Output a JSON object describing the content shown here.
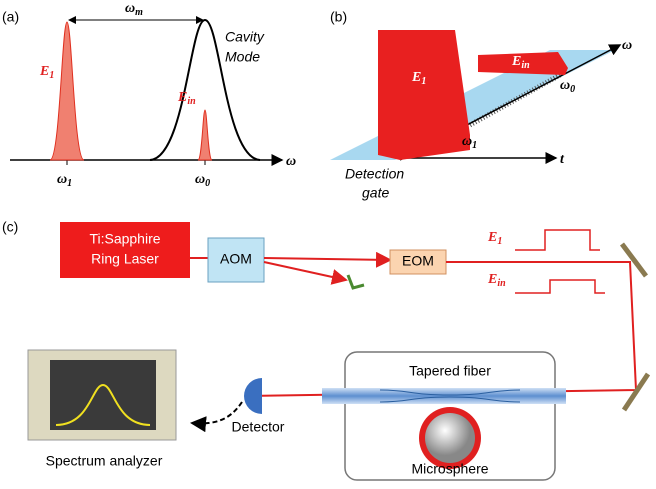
{
  "panel_a": {
    "label": "(a)",
    "omega_m": {
      "base": "ω",
      "sub": "m"
    },
    "cavity_mode": [
      "Cavity",
      "Mode"
    ],
    "e1": {
      "base": "E",
      "sub": "1"
    },
    "ein": {
      "base": "E",
      "sub": "in"
    },
    "axis": "ω",
    "w1": {
      "base": "ω",
      "sub": "1"
    },
    "w0": {
      "base": "ω",
      "sub": "0"
    }
  },
  "panel_b": {
    "label": "(b)",
    "e1": {
      "base": "E",
      "sub": "1"
    },
    "ein": {
      "base": "E",
      "sub": "in"
    },
    "axis_w": "ω",
    "axis_t": "t",
    "w0": {
      "base": "ω",
      "sub": "0"
    },
    "w1": {
      "base": "ω",
      "sub": "1"
    },
    "detection_gate": [
      "Detection",
      "gate"
    ]
  },
  "panel_c": {
    "label": "(c)",
    "laser": [
      "Ti:Sapphire",
      "Ring Laser"
    ],
    "aom": "AOM",
    "eom": "EOM",
    "e1": {
      "base": "E",
      "sub": "1"
    },
    "ein": {
      "base": "E",
      "sub": "in"
    },
    "tapered_fiber": "Tapered fiber",
    "microsphere": "Microsphere",
    "detector": "Detector",
    "spectrum_analyzer": "Spectrum analyzer"
  }
}
